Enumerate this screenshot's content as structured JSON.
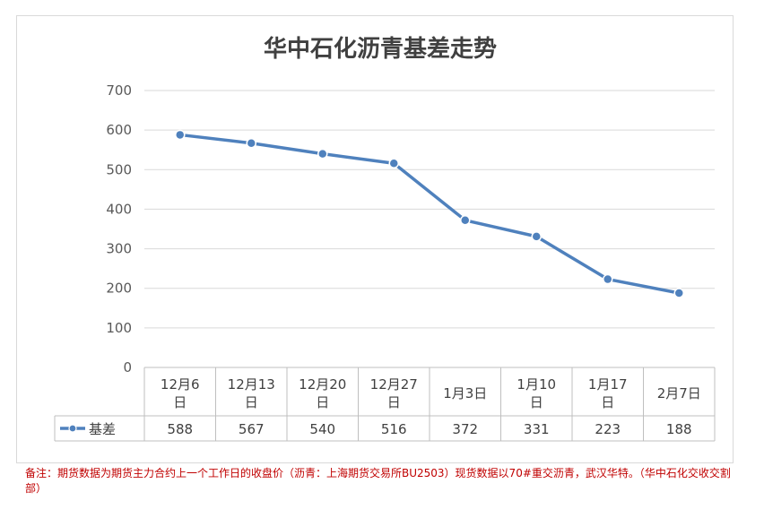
{
  "chart_data": {
    "type": "line",
    "title": "华中石化沥青基差走势",
    "categories": [
      "12月6日",
      "12月13日",
      "12月20日",
      "12月27日",
      "1月3日",
      "1月10日",
      "1月17日",
      "2月7日"
    ],
    "series": [
      {
        "name": "基差",
        "values": [
          588,
          567,
          540,
          516,
          372,
          331,
          223,
          188
        ],
        "color": "#4f81bd"
      }
    ],
    "ylim": [
      0,
      700
    ],
    "yticks": [
      0,
      100,
      200,
      300,
      400,
      500,
      600,
      700
    ],
    "grid": true,
    "data_table": true
  },
  "note": "备注：期货数据为期货主力合约上一个工作日的收盘价（沥青：上海期货交易所BU2503）现货数据以70#重交沥青，武汉华特。（华中石化交收交割部）"
}
